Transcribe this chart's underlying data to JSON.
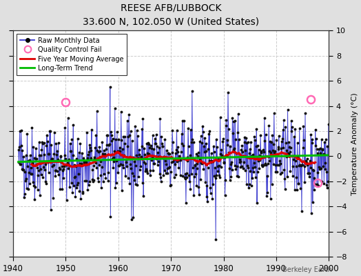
{
  "title": "REESE AFB/LUBBOCK",
  "subtitle": "33.600 N, 102.050 W (United States)",
  "ylabel": "Temperature Anomaly (°C)",
  "watermark": "Berkeley Earth",
  "xlim": [
    1940,
    2000
  ],
  "ylim": [
    -8,
    10
  ],
  "yticks": [
    -8,
    -6,
    -4,
    -2,
    0,
    2,
    4,
    6,
    8,
    10
  ],
  "xticks": [
    1940,
    1950,
    1960,
    1970,
    1980,
    1990,
    2000
  ],
  "bg_color": "#e0e0e0",
  "plot_bg_color": "#ffffff",
  "grid_color": "#cccccc",
  "raw_line_color": "#3333cc",
  "raw_dot_color": "#111111",
  "moving_avg_color": "#dd0000",
  "trend_color": "#00bb00",
  "qc_fail_color": "#ff69b4",
  "qc_fail_points": [
    [
      1950.0,
      4.3
    ],
    [
      1996.5,
      4.5
    ],
    [
      1997.8,
      -2.1
    ]
  ],
  "seed": 42,
  "trend_slope": 0.009,
  "trend_intercept": -0.18
}
